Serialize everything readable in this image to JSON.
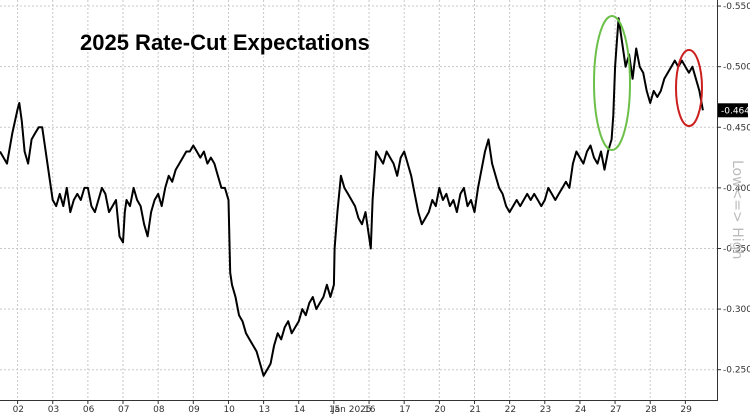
{
  "chart_data": {
    "type": "line",
    "title": "2025 Rate-Cut Expectations",
    "xlabel": "Jan 2025",
    "ylabel": "",
    "side_label": "Low<=> High",
    "y_ticks": [
      "-0.550",
      "-0.500",
      "-0.450",
      "-0.400",
      "-0.350",
      "-0.300",
      "-0.250"
    ],
    "y_tick_values": [
      0.55,
      0.5,
      0.45,
      0.4,
      0.35,
      0.3,
      0.25
    ],
    "ylim": [
      0.225,
      0.555
    ],
    "y_inverted_display": true,
    "x_ticks": [
      "02",
      "03",
      "06",
      "07",
      "08",
      "09",
      "10",
      "13",
      "14",
      "15",
      "16",
      "17",
      "20",
      "21",
      "22",
      "23",
      "24",
      "27",
      "28",
      "29"
    ],
    "x_tick_positions": [
      0,
      1,
      2,
      3,
      4,
      5,
      6,
      7,
      8,
      9,
      10,
      11,
      12,
      13,
      14,
      15,
      16,
      17,
      18,
      19
    ],
    "xlim": [
      -0.5,
      19.9
    ],
    "grid": true,
    "last_value_label": "-0.464",
    "last_value": 0.464,
    "highlight_colors": {
      "green": "#6cc04a",
      "red": "#cc1f1f",
      "line": "#000000",
      "label_bg": "#000000"
    },
    "series": [
      {
        "x": [
          -0.5,
          -0.3,
          -0.15,
          0.0,
          0.05,
          0.12,
          0.2,
          0.3,
          0.4,
          0.5,
          0.6,
          0.7,
          0.8,
          0.9,
          1.0,
          1.1,
          1.2,
          1.3,
          1.4,
          1.5,
          1.6,
          1.7,
          1.8,
          1.9,
          2.0,
          2.1,
          2.2,
          2.3,
          2.4,
          2.5,
          2.6,
          2.7,
          2.8,
          2.9,
          3.0,
          3.05,
          3.1,
          3.2,
          3.3,
          3.4,
          3.5,
          3.6,
          3.7,
          3.8,
          3.9,
          4.0,
          4.1,
          4.2,
          4.3,
          4.4,
          4.5,
          4.6,
          4.7,
          4.8,
          4.9,
          5.0,
          5.1,
          5.2,
          5.3,
          5.4,
          5.5,
          5.6,
          5.7,
          5.8,
          5.9,
          6.0,
          6.05,
          6.1,
          6.2,
          6.3,
          6.4,
          6.5,
          6.6,
          6.7,
          6.8,
          6.9,
          7.0,
          7.1,
          7.2,
          7.3,
          7.4,
          7.5,
          7.6,
          7.7,
          7.8,
          7.9,
          8.0,
          8.1,
          8.2,
          8.3,
          8.4,
          8.5,
          8.6,
          8.7,
          8.8,
          8.9,
          9.0,
          9.02,
          9.1,
          9.2,
          9.3,
          9.4,
          9.5,
          9.6,
          9.7,
          9.8,
          9.9,
          10.0,
          10.05,
          10.1,
          10.2,
          10.3,
          10.4,
          10.5,
          10.6,
          10.7,
          10.8,
          10.9,
          11.0,
          11.1,
          11.2,
          11.3,
          11.4,
          11.5,
          11.6,
          11.7,
          11.8,
          11.9,
          12.0,
          12.1,
          12.2,
          12.3,
          12.4,
          12.5,
          12.6,
          12.7,
          12.8,
          12.9,
          13.0,
          13.1,
          13.2,
          13.3,
          13.4,
          13.5,
          13.6,
          13.7,
          13.8,
          13.9,
          14.0,
          14.1,
          14.2,
          14.3,
          14.4,
          14.5,
          14.6,
          14.7,
          14.8,
          14.9,
          15.0,
          15.1,
          15.2,
          15.3,
          15.4,
          15.5,
          15.6,
          15.7,
          15.8,
          15.9,
          16.0,
          16.1,
          16.2,
          16.3,
          16.4,
          16.5,
          16.6,
          16.7,
          16.8,
          16.9,
          16.95,
          17.0,
          17.05,
          17.1,
          17.2,
          17.3,
          17.4,
          17.5,
          17.6,
          17.7,
          17.8,
          17.9,
          18.0,
          18.1,
          18.2,
          18.3,
          18.4,
          18.5,
          18.6,
          18.7,
          18.8,
          18.9,
          19.0,
          19.1,
          19.2,
          19.3,
          19.4,
          19.5
        ],
        "values": [
          0.43,
          0.42,
          0.445,
          0.465,
          0.47,
          0.455,
          0.43,
          0.42,
          0.44,
          0.445,
          0.45,
          0.45,
          0.43,
          0.41,
          0.39,
          0.385,
          0.395,
          0.385,
          0.4,
          0.38,
          0.39,
          0.395,
          0.39,
          0.4,
          0.4,
          0.385,
          0.38,
          0.39,
          0.4,
          0.395,
          0.38,
          0.385,
          0.39,
          0.36,
          0.355,
          0.38,
          0.39,
          0.385,
          0.4,
          0.39,
          0.385,
          0.37,
          0.36,
          0.38,
          0.39,
          0.395,
          0.385,
          0.4,
          0.41,
          0.405,
          0.415,
          0.42,
          0.425,
          0.43,
          0.43,
          0.435,
          0.43,
          0.425,
          0.43,
          0.42,
          0.425,
          0.42,
          0.41,
          0.4,
          0.4,
          0.39,
          0.33,
          0.32,
          0.31,
          0.295,
          0.29,
          0.28,
          0.275,
          0.27,
          0.265,
          0.255,
          0.245,
          0.25,
          0.255,
          0.27,
          0.28,
          0.275,
          0.285,
          0.29,
          0.28,
          0.285,
          0.29,
          0.3,
          0.295,
          0.305,
          0.31,
          0.3,
          0.305,
          0.31,
          0.32,
          0.31,
          0.32,
          0.35,
          0.38,
          0.41,
          0.4,
          0.395,
          0.39,
          0.385,
          0.375,
          0.37,
          0.38,
          0.36,
          0.35,
          0.39,
          0.43,
          0.425,
          0.42,
          0.43,
          0.425,
          0.42,
          0.41,
          0.425,
          0.43,
          0.42,
          0.41,
          0.395,
          0.38,
          0.37,
          0.375,
          0.38,
          0.39,
          0.385,
          0.4,
          0.39,
          0.395,
          0.385,
          0.39,
          0.38,
          0.395,
          0.4,
          0.385,
          0.39,
          0.38,
          0.4,
          0.415,
          0.43,
          0.44,
          0.42,
          0.41,
          0.4,
          0.395,
          0.385,
          0.38,
          0.385,
          0.39,
          0.385,
          0.39,
          0.395,
          0.39,
          0.395,
          0.39,
          0.385,
          0.39,
          0.4,
          0.395,
          0.39,
          0.395,
          0.4,
          0.405,
          0.4,
          0.42,
          0.43,
          0.425,
          0.42,
          0.43,
          0.435,
          0.425,
          0.42,
          0.43,
          0.415,
          0.43,
          0.44,
          0.46,
          0.5,
          0.52,
          0.54,
          0.52,
          0.5,
          0.51,
          0.49,
          0.515,
          0.5,
          0.495,
          0.48,
          0.47,
          0.48,
          0.475,
          0.48,
          0.49,
          0.495,
          0.5,
          0.505,
          0.5,
          0.505,
          0.5,
          0.495,
          0.5,
          0.49,
          0.48,
          0.464
        ]
      }
    ]
  }
}
